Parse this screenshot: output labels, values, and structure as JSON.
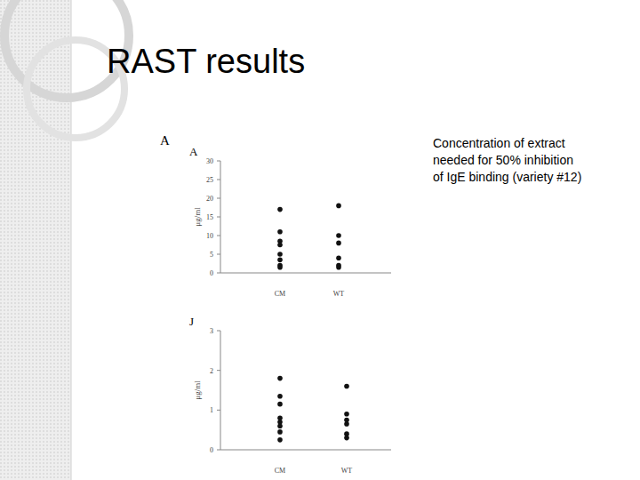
{
  "slide": {
    "title": "RAST results",
    "figure_label": "A",
    "caption": [
      "Concentration of extract",
      "needed for 50% inhibition",
      "of IgE binding (variety #12)"
    ]
  },
  "chart_data": [
    {
      "type": "strip",
      "title": "A",
      "y_label": "μg/ml",
      "categories": [
        "CM",
        "WT"
      ],
      "values": [
        [
          17,
          11,
          8.5,
          7.5,
          5,
          3.5,
          2,
          1.5
        ],
        [
          18,
          10,
          8,
          4,
          2,
          1.5
        ]
      ],
      "ylim": [
        0,
        30
      ],
      "yticks": [
        0,
        5,
        10,
        15,
        20,
        25,
        30
      ],
      "color": "#111111",
      "marker": "circle"
    },
    {
      "type": "strip",
      "title": "J",
      "y_label": "μg/ml",
      "categories": [
        "CM",
        "WT"
      ],
      "values": [
        [
          1.8,
          1.35,
          1.15,
          0.8,
          0.7,
          0.6,
          0.45,
          0.25
        ],
        [
          1.6,
          0.9,
          0.75,
          0.65,
          0.4,
          0.3
        ]
      ],
      "ylim": [
        0,
        3
      ],
      "yticks": [
        0,
        1,
        2,
        3
      ],
      "color": "#111111",
      "marker": "circle"
    }
  ]
}
